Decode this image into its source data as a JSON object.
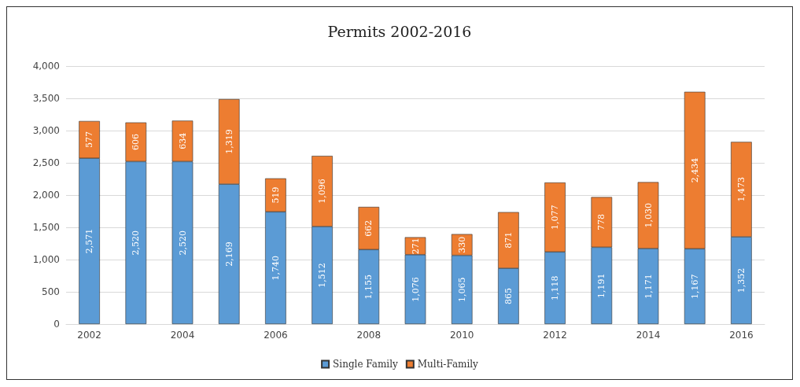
{
  "chart_data": {
    "type": "bar",
    "title": "Permits 2002-2016",
    "stacked": true,
    "categories": [
      "2002",
      null,
      "2004",
      null,
      "2006",
      null,
      "2008",
      null,
      "2010",
      null,
      "2012",
      null,
      "2014",
      null,
      "2016"
    ],
    "series": [
      {
        "name": "Single Family",
        "color": "#5b9bd5",
        "values": [
          2571,
          2520,
          2520,
          2169,
          1740,
          1512,
          1155,
          1076,
          1065,
          865,
          1118,
          1191,
          1171,
          1167,
          1352
        ],
        "value_labels": [
          "2,571",
          "2,520",
          "2,520",
          "2,169",
          "1,740",
          "1,512",
          "1,155",
          "1,076",
          "1,065",
          "865",
          "1,118",
          "1,191",
          "1,171",
          "1,167",
          "1,352"
        ]
      },
      {
        "name": "Multi-Family",
        "color": "#ed7d31",
        "values": [
          577,
          606,
          634,
          1319,
          519,
          1096,
          662,
          271,
          330,
          871,
          1077,
          778,
          1030,
          2434,
          1473
        ],
        "value_labels": [
          "577",
          "606",
          "634",
          "1,319",
          "519",
          "1,096",
          "662",
          "271",
          "330",
          "871",
          "1,077",
          "778",
          "1,030",
          "2,434",
          "1,473"
        ]
      }
    ],
    "ylim": [
      0,
      4000
    ],
    "yticks": [
      0,
      {
        "value": 500,
        "label": "500"
      },
      {
        "value": 1000,
        "label": "1,000"
      },
      {
        "value": 1500,
        "label": "1,500"
      },
      {
        "value": 2000,
        "label": "2,000"
      },
      {
        "value": 2500,
        "label": "2,500"
      },
      {
        "value": 3000,
        "label": "3,000"
      },
      {
        "value": 3500,
        "label": "3,500"
      },
      {
        "value": 4000,
        "label": "4,000"
      }
    ],
    "grid": "y",
    "legend": "bottom"
  }
}
